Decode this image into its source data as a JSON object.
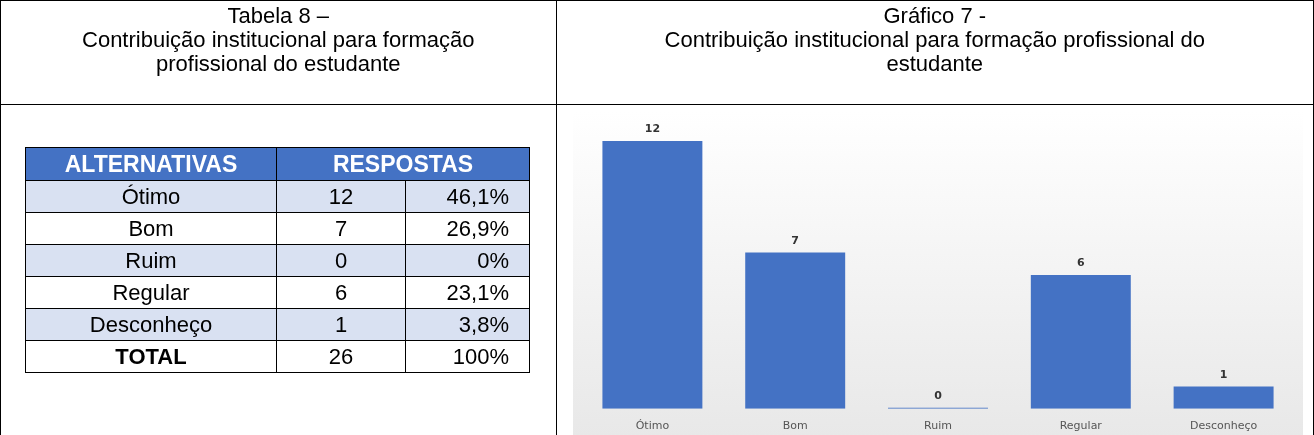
{
  "chart_data": [
    {
      "type": "other",
      "title": "Tabela 8 –\nContribuição institucional para formação profissional do estudante",
      "annotations": [
        "ALTERNATIVAS",
        "RESPOSTAS",
        "Ótimo",
        "12",
        "46,1%",
        "Bom",
        "7",
        "26,9%",
        "Ruim",
        "0",
        "0%",
        "Regular",
        "6",
        "23,1%",
        "Desconheço",
        "1",
        "3,8%",
        "TOTAL",
        "26",
        "100%"
      ]
    },
    {
      "type": "bar",
      "title": "Gráfico 7 -\nContribuição institucional para formação profissional do estudante",
      "categories": [
        "Ótimo",
        "Bom",
        "Ruim",
        "Regular",
        "Desconheço"
      ],
      "values": [
        12,
        7,
        0,
        6,
        1
      ],
      "color": "#4472c4",
      "data_labels": true,
      "tick_labels": "x",
      "grid": false,
      "legend": false
    }
  ]
}
